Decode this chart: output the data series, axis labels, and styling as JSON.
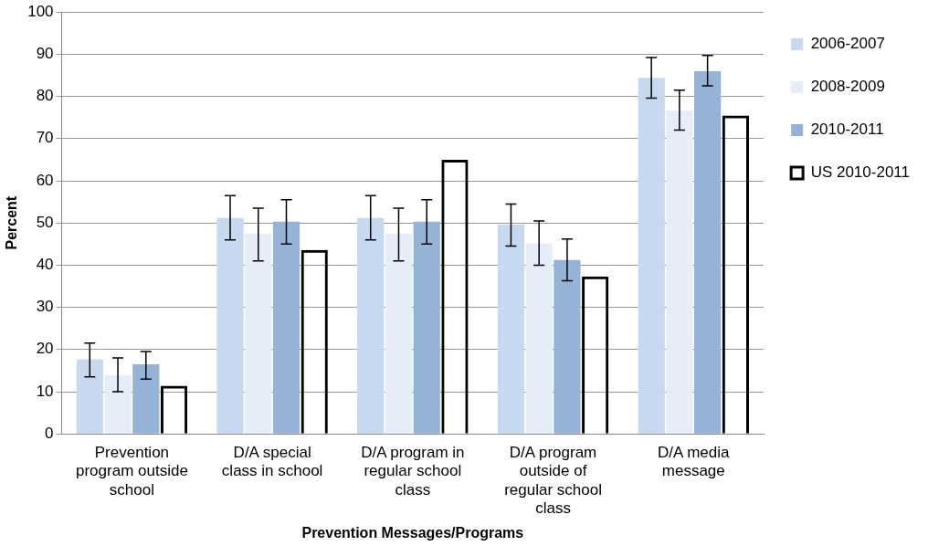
{
  "chart_data": {
    "type": "bar",
    "xlabel": "Prevention Messages/Programs",
    "ylabel": "Percent",
    "categories": [
      "Prevention program outside school",
      "D/A special class in school",
      "D/A program in regular school class",
      "D/A program outside of regular school class",
      "D/A media message"
    ],
    "series": [
      {
        "name": "2006-2007",
        "color": "#c6d9f1",
        "values": [
          17.7,
          51.2,
          51.2,
          49.6,
          84.4
        ],
        "errors": [
          [
            13.5,
            21.5
          ],
          [
            46,
            56.5
          ],
          [
            46,
            56.5
          ],
          [
            44.5,
            54.5
          ],
          [
            79.6,
            89.2
          ]
        ]
      },
      {
        "name": "2008-2009",
        "color": "#e4edf8",
        "values": [
          13.9,
          47.4,
          47.4,
          45.2,
          76.6
        ],
        "errors": [
          [
            10,
            18
          ],
          [
            41,
            53.5
          ],
          [
            41,
            53.5
          ],
          [
            40,
            50.5
          ],
          [
            72,
            81.5
          ]
        ]
      },
      {
        "name": "2010-2011",
        "color": "#95b3d7",
        "values": [
          16.5,
          50.3,
          50.3,
          41.2,
          86
        ],
        "errors": [
          [
            13,
            19.5
          ],
          [
            45,
            55.5
          ],
          [
            45,
            55.5
          ],
          [
            36.3,
            46.2
          ],
          [
            82.5,
            89.7
          ]
        ]
      },
      {
        "name": "US 2010-2011",
        "color": "#000000",
        "values": [
          11.4,
          43.6,
          65,
          37.3,
          75.5
        ]
      }
    ],
    "ylim": [
      0,
      100
    ],
    "yticks": [
      0,
      10,
      20,
      30,
      40,
      50,
      60,
      70,
      80,
      90,
      100
    ],
    "grid": "y",
    "legend": "right"
  }
}
